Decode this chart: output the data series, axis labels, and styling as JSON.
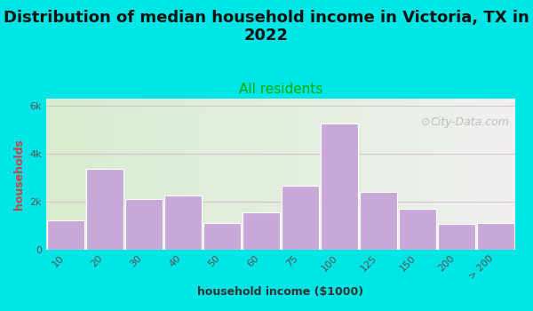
{
  "title": "Distribution of median household income in Victoria, TX in\n2022",
  "subtitle": "All residents",
  "xlabel": "household income ($1000)",
  "ylabel": "households",
  "bar_labels": [
    "10",
    "20",
    "30",
    "40",
    "50",
    "60",
    "75",
    "100",
    "125",
    "150",
    "200",
    "> 200"
  ],
  "bar_values": [
    1200,
    3350,
    2100,
    2250,
    1100,
    1550,
    2650,
    5250,
    2400,
    1700,
    1050,
    1100
  ],
  "bar_color": "#c8a8d8",
  "bar_edge_color": "#ffffff",
  "background_outer": "#00e5e5",
  "background_plot_left": "#d8ecd0",
  "background_plot_right": "#f0f0f0",
  "grid_color": "#cc99cc",
  "grid_alpha": 0.5,
  "title_fontsize": 13,
  "subtitle_color": "#00aa00",
  "subtitle_fontsize": 11,
  "ylabel_color": "#cc4444",
  "xlabel_color": "#333333",
  "tick_label_color": "#555555",
  "ytick_labels": [
    "0",
    "2k",
    "4k",
    "6k"
  ],
  "ytick_values": [
    0,
    2000,
    4000,
    6000
  ],
  "ylim": [
    0,
    6300
  ],
  "watermark": "City-Data.com"
}
